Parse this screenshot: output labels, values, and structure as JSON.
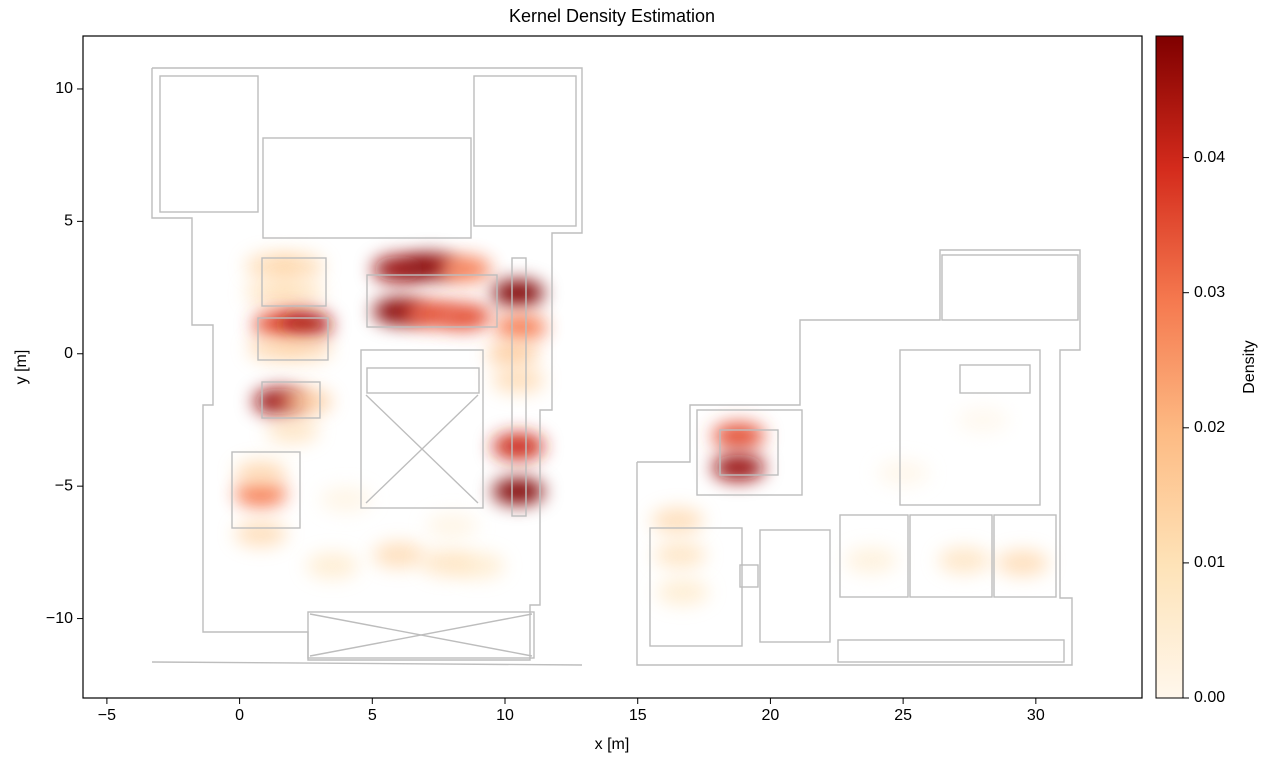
{
  "chart_data": {
    "type": "density",
    "title": "Kernel Density Estimation",
    "xlabel": "x [m]",
    "ylabel": "y [m]",
    "xlim": [
      -5.9,
      34
    ],
    "ylim": [
      -13,
      12
    ],
    "xticks": [
      {
        "value": -5,
        "label": "−5"
      },
      0,
      5,
      10,
      15,
      20,
      25,
      30
    ],
    "yticks": [
      {
        "value": -10,
        "label": "−10"
      },
      {
        "value": -5,
        "label": "−5"
      },
      0,
      5,
      10
    ],
    "colormap": "OrRd",
    "colorbar_label": "Density",
    "clim": [
      0,
      0.049
    ],
    "cticks": [
      {
        "value": 0,
        "label": "0.00"
      },
      0.01,
      0.02,
      0.03,
      0.04
    ],
    "x": [
      1.2,
      2.2,
      1.2,
      2.2,
      1.5,
      2.5,
      1.3,
      2.5,
      1.5,
      2.5,
      2,
      0.8,
      0.8,
      0.8,
      6,
      7.2,
      8.5,
      6,
      7.2,
      8.5,
      10.5,
      10.6,
      10.3,
      10.5,
      10.5,
      10.5,
      6,
      7.8,
      9,
      3.5,
      18.8,
      18.8,
      16.5,
      16.6,
      16.7,
      23.8,
      27.3,
      29.5,
      4,
      8,
      25,
      28
    ],
    "y": [
      3.3,
      3.3,
      2.3,
      2.3,
      1.1,
      1.1,
      0.2,
      0.2,
      -1.8,
      -1.8,
      -2.9,
      -5.3,
      -4.5,
      -6.8,
      3.2,
      3.3,
      3.2,
      1.6,
      1.5,
      1.4,
      2.3,
      1,
      0,
      -1,
      -3.5,
      -5.2,
      -7.6,
      -7.9,
      -8,
      -8,
      -3.1,
      -4.3,
      -6.3,
      -7.6,
      -9,
      -7.8,
      -7.8,
      -7.9,
      -5.5,
      -6.5,
      -4.5,
      -2.5
    ],
    "values": [
      0.012,
      0.012,
      0.01,
      0.01,
      0.03,
      0.038,
      0.012,
      0.012,
      0.04,
      0.015,
      0.01,
      0.025,
      0.012,
      0.012,
      0.04,
      0.042,
      0.025,
      0.042,
      0.03,
      0.03,
      0.045,
      0.025,
      0.015,
      0.012,
      0.035,
      0.045,
      0.012,
      0.01,
      0.008,
      0.008,
      0.03,
      0.04,
      0.012,
      0.01,
      0.008,
      0.006,
      0.01,
      0.012,
      0.004,
      0.004,
      0.003,
      0.002
    ]
  }
}
